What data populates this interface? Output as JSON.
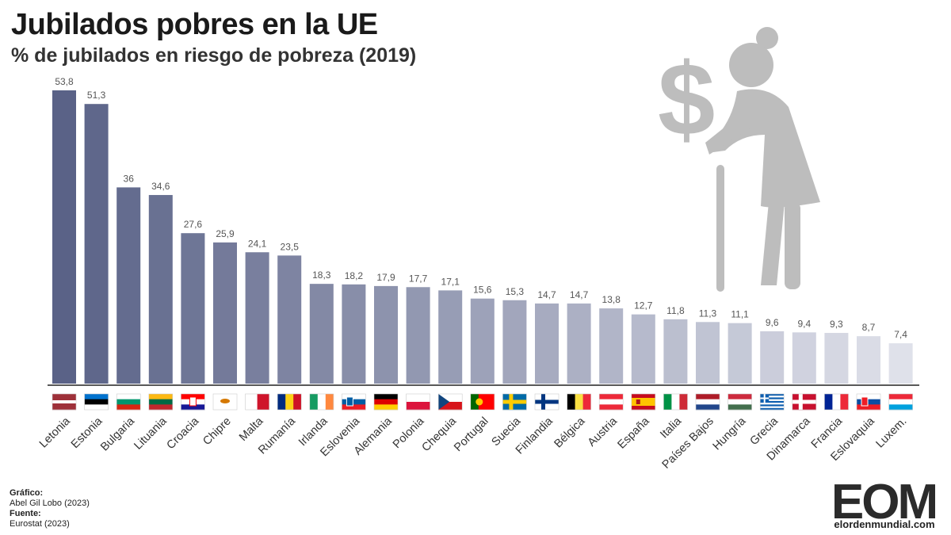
{
  "header": {
    "title": "Jubilados pobres en la UE",
    "subtitle": "% de jubilados en riesgo de pobreza (2019)"
  },
  "chart_data": {
    "type": "bar",
    "categories": [
      "Letonia",
      "Estonia",
      "Bulgaria",
      "Lituania",
      "Croacia",
      "Chipre",
      "Malta",
      "Rumanía",
      "Irlanda",
      "Eslovenia",
      "Alemania",
      "Polonia",
      "Chequia",
      "Portugal",
      "Suecia",
      "Finlandia",
      "Bélgica",
      "Austria",
      "España",
      "Italia",
      "Países Bajos",
      "Hungría",
      "Grecia",
      "Dinamarca",
      "Francia",
      "Eslovaquia",
      "Luxem."
    ],
    "values": [
      53.8,
      51.3,
      36,
      34.6,
      27.6,
      25.9,
      24.1,
      23.5,
      18.3,
      18.2,
      17.9,
      17.7,
      17.1,
      15.6,
      15.3,
      14.7,
      14.7,
      13.8,
      12.7,
      11.8,
      11.3,
      11.1,
      9.6,
      9.4,
      9.3,
      8.7,
      7.4
    ],
    "value_labels": [
      "53,8",
      "51,3",
      "36",
      "34,6",
      "27,6",
      "25,9",
      "24,1",
      "23,5",
      "18,3",
      "18,2",
      "17,9",
      "17,7",
      "17,1",
      "15,6",
      "15,3",
      "14,7",
      "14,7",
      "13,8",
      "12,7",
      "11,8",
      "11,3",
      "11,1",
      "9,6",
      "9,4",
      "9,3",
      "8,7",
      "7,4"
    ],
    "ylim": [
      0,
      54
    ],
    "color_start": "#5a6287",
    "color_end": "#dfe1ea",
    "grid": false,
    "legend": "none"
  },
  "flags": [
    {
      "country": "Letonia",
      "icon": "latvia-flag-icon",
      "type": "h",
      "colors": [
        "#9e3039",
        "#9e3039",
        "#ffffff",
        "#9e3039",
        "#9e3039"
      ]
    },
    {
      "country": "Estonia",
      "icon": "estonia-flag-icon",
      "type": "h",
      "colors": [
        "#0072ce",
        "#000000",
        "#ffffff"
      ]
    },
    {
      "country": "Bulgaria",
      "icon": "bulgaria-flag-icon",
      "type": "h",
      "colors": [
        "#ffffff",
        "#00966e",
        "#d62612"
      ]
    },
    {
      "country": "Lituania",
      "icon": "lithuania-flag-icon",
      "type": "h",
      "colors": [
        "#fdb913",
        "#006a44",
        "#c1272d"
      ]
    },
    {
      "country": "Croacia",
      "icon": "croatia-flag-icon",
      "type": "h",
      "colors": [
        "#ff0000",
        "#ffffff",
        "#171796"
      ]
    },
    {
      "country": "Chipre",
      "icon": "cyprus-flag-icon",
      "type": "h",
      "colors": [
        "#ffffff"
      ]
    },
    {
      "country": "Malta",
      "icon": "malta-flag-icon",
      "type": "v",
      "colors": [
        "#ffffff",
        "#cf142b"
      ]
    },
    {
      "country": "Rumanía",
      "icon": "romania-flag-icon",
      "type": "v",
      "colors": [
        "#002b7f",
        "#fcd116",
        "#ce1126"
      ]
    },
    {
      "country": "Irlanda",
      "icon": "ireland-flag-icon",
      "type": "v",
      "colors": [
        "#169b62",
        "#ffffff",
        "#ff883e"
      ]
    },
    {
      "country": "Eslovenia",
      "icon": "slovenia-flag-icon",
      "type": "h",
      "colors": [
        "#ffffff",
        "#005da4",
        "#ed1c24"
      ]
    },
    {
      "country": "Alemania",
      "icon": "germany-flag-icon",
      "type": "h",
      "colors": [
        "#000000",
        "#dd0000",
        "#ffce00"
      ]
    },
    {
      "country": "Polonia",
      "icon": "poland-flag-icon",
      "type": "h",
      "colors": [
        "#ffffff",
        "#dc143c"
      ]
    },
    {
      "country": "Chequia",
      "icon": "czechia-flag-icon",
      "type": "h",
      "colors": [
        "#ffffff",
        "#d7141a"
      ]
    },
    {
      "country": "Portugal",
      "icon": "portugal-flag-icon",
      "type": "v",
      "colors": [
        "#006600",
        "#ff0000",
        "#ff0000"
      ]
    },
    {
      "country": "Suecia",
      "icon": "sweden-flag-icon",
      "type": "h",
      "colors": [
        "#006aa7"
      ]
    },
    {
      "country": "Finlandia",
      "icon": "finland-flag-icon",
      "type": "h",
      "colors": [
        "#ffffff"
      ]
    },
    {
      "country": "Bélgica",
      "icon": "belgium-flag-icon",
      "type": "v",
      "colors": [
        "#000000",
        "#fae042",
        "#ed2939"
      ]
    },
    {
      "country": "Austria",
      "icon": "austria-flag-icon",
      "type": "h",
      "colors": [
        "#ed2939",
        "#ffffff",
        "#ed2939"
      ]
    },
    {
      "country": "España",
      "icon": "spain-flag-icon",
      "type": "h",
      "colors": [
        "#c60b1e",
        "#ffc400",
        "#ffc400",
        "#c60b1e"
      ]
    },
    {
      "country": "Italia",
      "icon": "italy-flag-icon",
      "type": "v",
      "colors": [
        "#009246",
        "#ffffff",
        "#ce2b37"
      ]
    },
    {
      "country": "Países Bajos",
      "icon": "netherlands-flag-icon",
      "type": "h",
      "colors": [
        "#ae1c28",
        "#ffffff",
        "#21468b"
      ]
    },
    {
      "country": "Hungría",
      "icon": "hungary-flag-icon",
      "type": "h",
      "colors": [
        "#cd2a3e",
        "#ffffff",
        "#436f4d"
      ]
    },
    {
      "country": "Grecia",
      "icon": "greece-flag-icon",
      "type": "h",
      "colors": [
        "#0d5eaf",
        "#ffffff",
        "#0d5eaf",
        "#ffffff",
        "#0d5eaf",
        "#ffffff",
        "#0d5eaf",
        "#ffffff",
        "#0d5eaf"
      ]
    },
    {
      "country": "Dinamarca",
      "icon": "denmark-flag-icon",
      "type": "h",
      "colors": [
        "#c8102e"
      ]
    },
    {
      "country": "Francia",
      "icon": "france-flag-icon",
      "type": "v",
      "colors": [
        "#002395",
        "#ffffff",
        "#ed2939"
      ]
    },
    {
      "country": "Eslovaquia",
      "icon": "slovakia-flag-icon",
      "type": "h",
      "colors": [
        "#ffffff",
        "#0b4ea2",
        "#ee1c25"
      ]
    },
    {
      "country": "Luxem.",
      "icon": "luxembourg-flag-icon",
      "type": "h",
      "colors": [
        "#ed2939",
        "#ffffff",
        "#00a1de"
      ]
    }
  ],
  "credits": {
    "chart_heading": "Gráfico:",
    "chart_author": "Abel Gil Lobo (2023)",
    "source_heading": "Fuente:",
    "source_name": "Eurostat (2023)"
  },
  "brand": {
    "logo_text": "EOM",
    "website": "elordenmundial.com",
    "logo_color": "#2b2b2b",
    "accent_color": "#6cb33f"
  },
  "illustration": {
    "icon": "elderly-woman-dollar-icon",
    "color": "#bdbdbd"
  }
}
